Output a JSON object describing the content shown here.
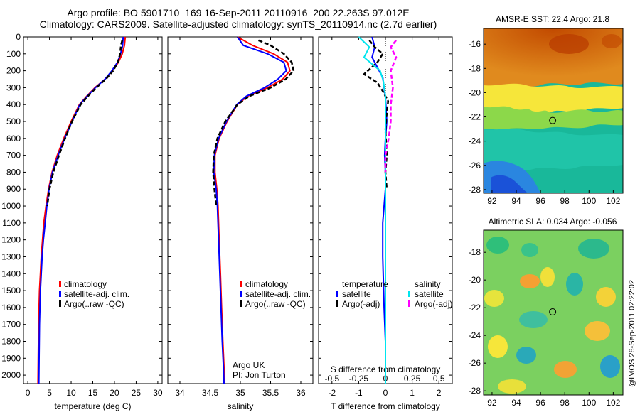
{
  "title": {
    "line1": "Argo profile: BO 5901710_169 16-Sep-2011 20110916_200 22.263S 97.012E",
    "line2": "Climatology: CARS2009. Satellite-adjusted climatology: synTS_20110914.nc (2.7d earlier)"
  },
  "colors": {
    "climatology": "#ff0000",
    "satellite": "#0000ff",
    "argo": "#000000",
    "sal_satellite": "#00e5ee",
    "sal_argo": "#ff00ff"
  },
  "legend1": {
    "clim": "climatology",
    "sat": "satellite-adj. clim.",
    "argo": "Argo(..raw -QC)"
  },
  "legend2": {
    "clim": "climatology",
    "sat": "satellite-adj. clim.",
    "argo": "Argo(..raw -QC)"
  },
  "legend3": {
    "temp_head": "temperature",
    "sal_head": "salinity",
    "t_sat": "satellite",
    "t_argo": "Argo(-adj)",
    "s_sat": "satellite",
    "s_argo": "Argo(-adj)"
  },
  "annotation": {
    "line1": "Argo UK",
    "line2": "PI: Jon Turton"
  },
  "stamp": "@IMOS 28-Sep-2011 02:22:02",
  "map_titles": {
    "sst": "AMSR-E SST: 22.4 Argo: 21.8",
    "sla": "Altimetric SLA: 0.034 Argo: -0.056"
  },
  "chart_data": [
    {
      "type": "line",
      "xlabel": "temperature (deg C)",
      "xlim": [
        -1,
        31
      ],
      "ylim": [
        0,
        2050
      ],
      "xticks": [
        0,
        5,
        10,
        15,
        20,
        25,
        30
      ],
      "yticks": [
        0,
        100,
        200,
        300,
        400,
        500,
        600,
        700,
        800,
        900,
        1000,
        1100,
        1200,
        1300,
        1400,
        1500,
        1600,
        1700,
        1800,
        1900,
        2000
      ],
      "series": [
        {
          "name": "climatology",
          "x": [
            22.5,
            22.3,
            21.8,
            20.9,
            19.5,
            17.8,
            15.5,
            13.6,
            11.9,
            10.0,
            8.3,
            6.8,
            5.6,
            4.8,
            4.2,
            3.7,
            3.4,
            3.1,
            2.9,
            2.7,
            2.5,
            2.35
          ],
          "y": [
            0,
            50,
            100,
            150,
            200,
            250,
            300,
            350,
            400,
            500,
            600,
            700,
            800,
            900,
            1000,
            1100,
            1200,
            1300,
            1400,
            1500,
            1700,
            2050
          ]
        },
        {
          "name": "satellite-adj. clim.",
          "x": [
            22.0,
            21.9,
            21.4,
            20.7,
            19.4,
            17.8,
            15.6,
            13.7,
            12.0,
            10.2,
            8.5,
            7.0,
            5.7,
            4.9,
            4.4,
            4.0,
            3.6,
            3.3,
            3.1,
            2.9,
            2.7,
            2.55
          ],
          "y": [
            0,
            50,
            100,
            150,
            200,
            250,
            300,
            350,
            400,
            500,
            600,
            700,
            800,
            900,
            1000,
            1100,
            1200,
            1300,
            1400,
            1500,
            1700,
            2050
          ]
        },
        {
          "name": "Argo(..raw -QC)",
          "x": [
            21.8,
            21.5,
            21.3,
            20.8,
            19.7,
            18.0,
            15.8,
            13.9,
            12.2,
            10.2,
            8.6,
            7.2,
            5.9,
            5.0,
            4.5
          ],
          "y": [
            20,
            50,
            100,
            150,
            200,
            250,
            300,
            350,
            400,
            500,
            600,
            700,
            800,
            900,
            1000
          ]
        }
      ]
    },
    {
      "type": "line",
      "xlabel": "salinity",
      "xlim": [
        33.8,
        36.2
      ],
      "ylim": [
        0,
        2050
      ],
      "xticks": [
        34,
        34.5,
        35,
        35.5,
        36
      ],
      "series": [
        {
          "name": "climatology",
          "x": [
            34.95,
            35.2,
            35.55,
            35.78,
            35.82,
            35.7,
            35.45,
            35.12,
            34.95,
            34.78,
            34.65,
            34.58,
            34.58,
            34.61,
            34.63,
            34.65,
            34.67,
            34.69,
            34.71,
            34.73,
            34.735
          ],
          "y": [
            0,
            50,
            100,
            150,
            200,
            250,
            300,
            350,
            400,
            500,
            600,
            700,
            800,
            900,
            1000,
            1200,
            1400,
            1600,
            1800,
            1950,
            2050
          ]
        },
        {
          "name": "satellite-adj. clim.",
          "x": [
            34.95,
            35.05,
            35.45,
            35.72,
            35.76,
            35.62,
            35.4,
            35.1,
            34.94,
            34.77,
            34.64,
            34.57,
            34.56,
            34.6,
            34.62,
            34.64,
            34.66,
            34.68,
            34.7,
            34.72,
            34.73
          ],
          "y": [
            0,
            50,
            100,
            150,
            200,
            250,
            300,
            350,
            400,
            500,
            600,
            700,
            800,
            900,
            1000,
            1200,
            1400,
            1600,
            1800,
            1950,
            2050
          ]
        },
        {
          "name": "Argo(..raw -QC)",
          "x": [
            35.3,
            35.5,
            35.72,
            35.85,
            35.88,
            35.75,
            35.5,
            35.15,
            34.95,
            34.75,
            34.62,
            34.56,
            34.55,
            34.57,
            34.6
          ],
          "y": [
            20,
            50,
            100,
            150,
            200,
            250,
            300,
            350,
            400,
            500,
            600,
            700,
            800,
            900,
            1000
          ]
        }
      ]
    },
    {
      "type": "line",
      "xlabel": "T difference from climatology",
      "xlabel_top": "S difference from climatology",
      "xlim": [
        -2.5,
        2.5
      ],
      "ylim": [
        0,
        2050
      ],
      "xticks": [
        -2,
        -1,
        0,
        1,
        2
      ],
      "xticks_top": [
        -0.5,
        -0.25,
        0,
        0.25,
        0.5
      ],
      "series": [
        {
          "name": "temperature satellite",
          "x": [
            -0.5,
            -0.4,
            -0.5,
            -0.3,
            -0.1,
            -0.05,
            0.0,
            0.02,
            0.05,
            0.0,
            -0.03,
            0.0,
            0.0,
            -0.05,
            -0.1,
            -0.1,
            -0.05,
            0.0,
            0.0
          ],
          "y": [
            0,
            60,
            120,
            180,
            240,
            300,
            360,
            420,
            500,
            600,
            700,
            800,
            900,
            1000,
            1100,
            1300,
            1600,
            1800,
            2050
          ]
        },
        {
          "name": "temperature Argo(-adj)",
          "x": [
            -0.6,
            -0.4,
            -0.1,
            -0.3,
            -0.8,
            -0.3,
            -0.1,
            0.1,
            0.05,
            0.0,
            0.05,
            0.0,
            0.05
          ],
          "y": [
            20,
            60,
            100,
            150,
            220,
            270,
            320,
            380,
            450,
            550,
            700,
            800,
            900
          ]
        },
        {
          "name": "salinity satellite",
          "x": [
            -0.25,
            -0.15,
            -0.2,
            -0.05,
            -0.02,
            0.0,
            0.0,
            0.0,
            0.0,
            0.0,
            0.0,
            0.0,
            0.0,
            0.0,
            0.0,
            0.0
          ],
          "y": [
            0,
            60,
            120,
            200,
            260,
            350,
            450,
            550,
            650,
            800,
            1000,
            1200,
            1400,
            1600,
            1800,
            2050
          ]
        },
        {
          "name": "salinity Argo(-adj)",
          "x": [
            0.1,
            0.05,
            0.1,
            0.05,
            0.07,
            0.05,
            0.05,
            0.03,
            0.0,
            0.0
          ],
          "y": [
            20,
            60,
            120,
            200,
            300,
            400,
            500,
            600,
            700,
            800
          ]
        }
      ]
    }
  ],
  "maps": {
    "sst": {
      "xticks": [
        92,
        94,
        96,
        98,
        100,
        102
      ],
      "yticks": [
        -16,
        -18,
        -20,
        -22,
        -24,
        -26,
        -28
      ],
      "xlim": [
        91.3,
        102.8
      ],
      "ylim": [
        -28.3,
        -14.7
      ],
      "marker": [
        97.0,
        -22.3
      ]
    },
    "sla": {
      "xticks": [
        92,
        94,
        96,
        98,
        100,
        102
      ],
      "yticks": [
        -18,
        -20,
        -22,
        -24,
        -26,
        -28
      ],
      "xlim": [
        91.3,
        102.8
      ],
      "ylim": [
        -28.3,
        -16.4
      ],
      "marker": [
        97.0,
        -22.3
      ]
    }
  }
}
